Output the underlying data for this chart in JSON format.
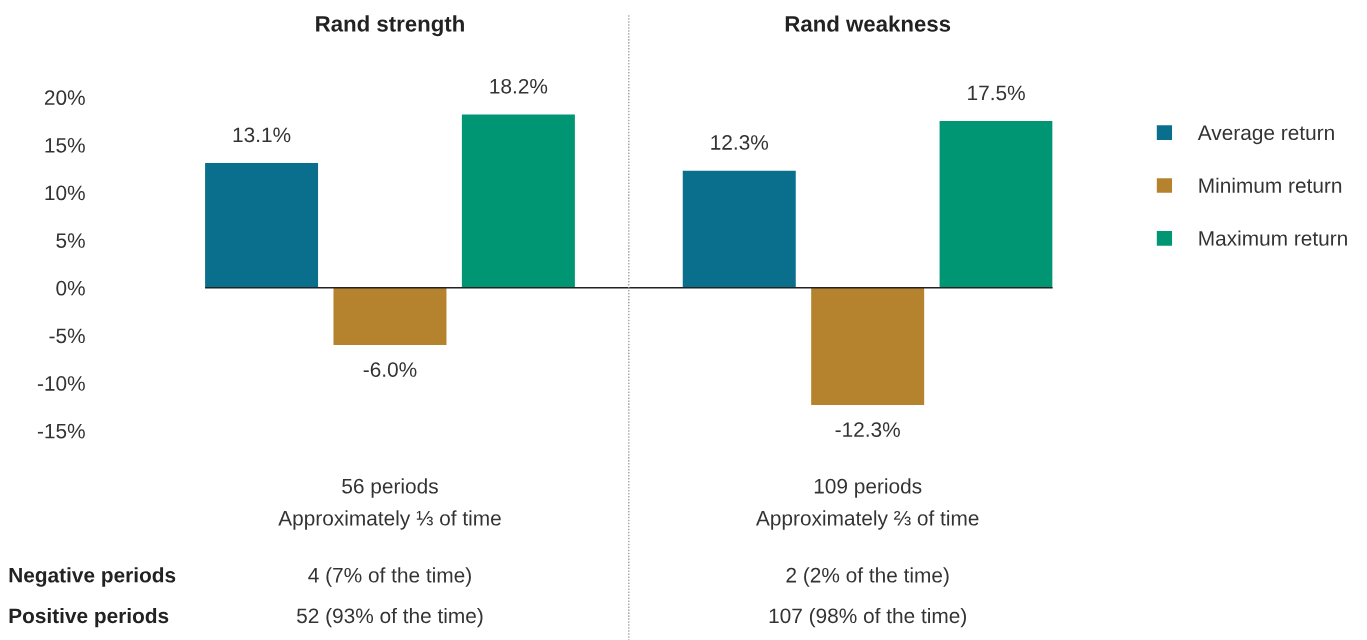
{
  "chart_data": {
    "type": "bar",
    "categories": [
      "Rand strength",
      "Rand weakness"
    ],
    "series": [
      {
        "name": "Average return",
        "color": "#0a6f8c",
        "values": [
          13.1,
          12.3
        ],
        "value_labels": [
          "13.1%",
          "12.3%"
        ]
      },
      {
        "name": "Minimum return",
        "color": "#b5832e",
        "values": [
          -6.0,
          -12.3
        ],
        "value_labels": [
          "-6.0%",
          "-12.3%"
        ]
      },
      {
        "name": "Maximum return",
        "color": "#009673",
        "values": [
          18.2,
          17.5
        ],
        "value_labels": [
          "18.2%",
          "17.5%"
        ]
      }
    ],
    "ylim": [
      -15,
      20
    ],
    "yticks": [
      {
        "value": 20,
        "label": "20%"
      },
      {
        "value": 15,
        "label": "15%"
      },
      {
        "value": 10,
        "label": "10%"
      },
      {
        "value": 5,
        "label": "5%"
      },
      {
        "value": 0,
        "label": "0%"
      },
      {
        "value": -5,
        "label": "-5%"
      },
      {
        "value": -10,
        "label": "-10%"
      },
      {
        "value": -15,
        "label": "-15%"
      }
    ],
    "ref_lines": [
      {
        "axis": "y",
        "value": 0,
        "color": "#222222"
      }
    ],
    "grid": false,
    "legend": "right",
    "annotations": [
      "56 periods",
      "Approximately ⅓ of time",
      "109 periods",
      "Approximately ⅔ of time",
      "Negative periods",
      "4 (7% of the time)",
      "2 (2% of the time)",
      "Positive periods",
      "52 (93% of the time)",
      "107 (98% of the time)"
    ]
  }
}
